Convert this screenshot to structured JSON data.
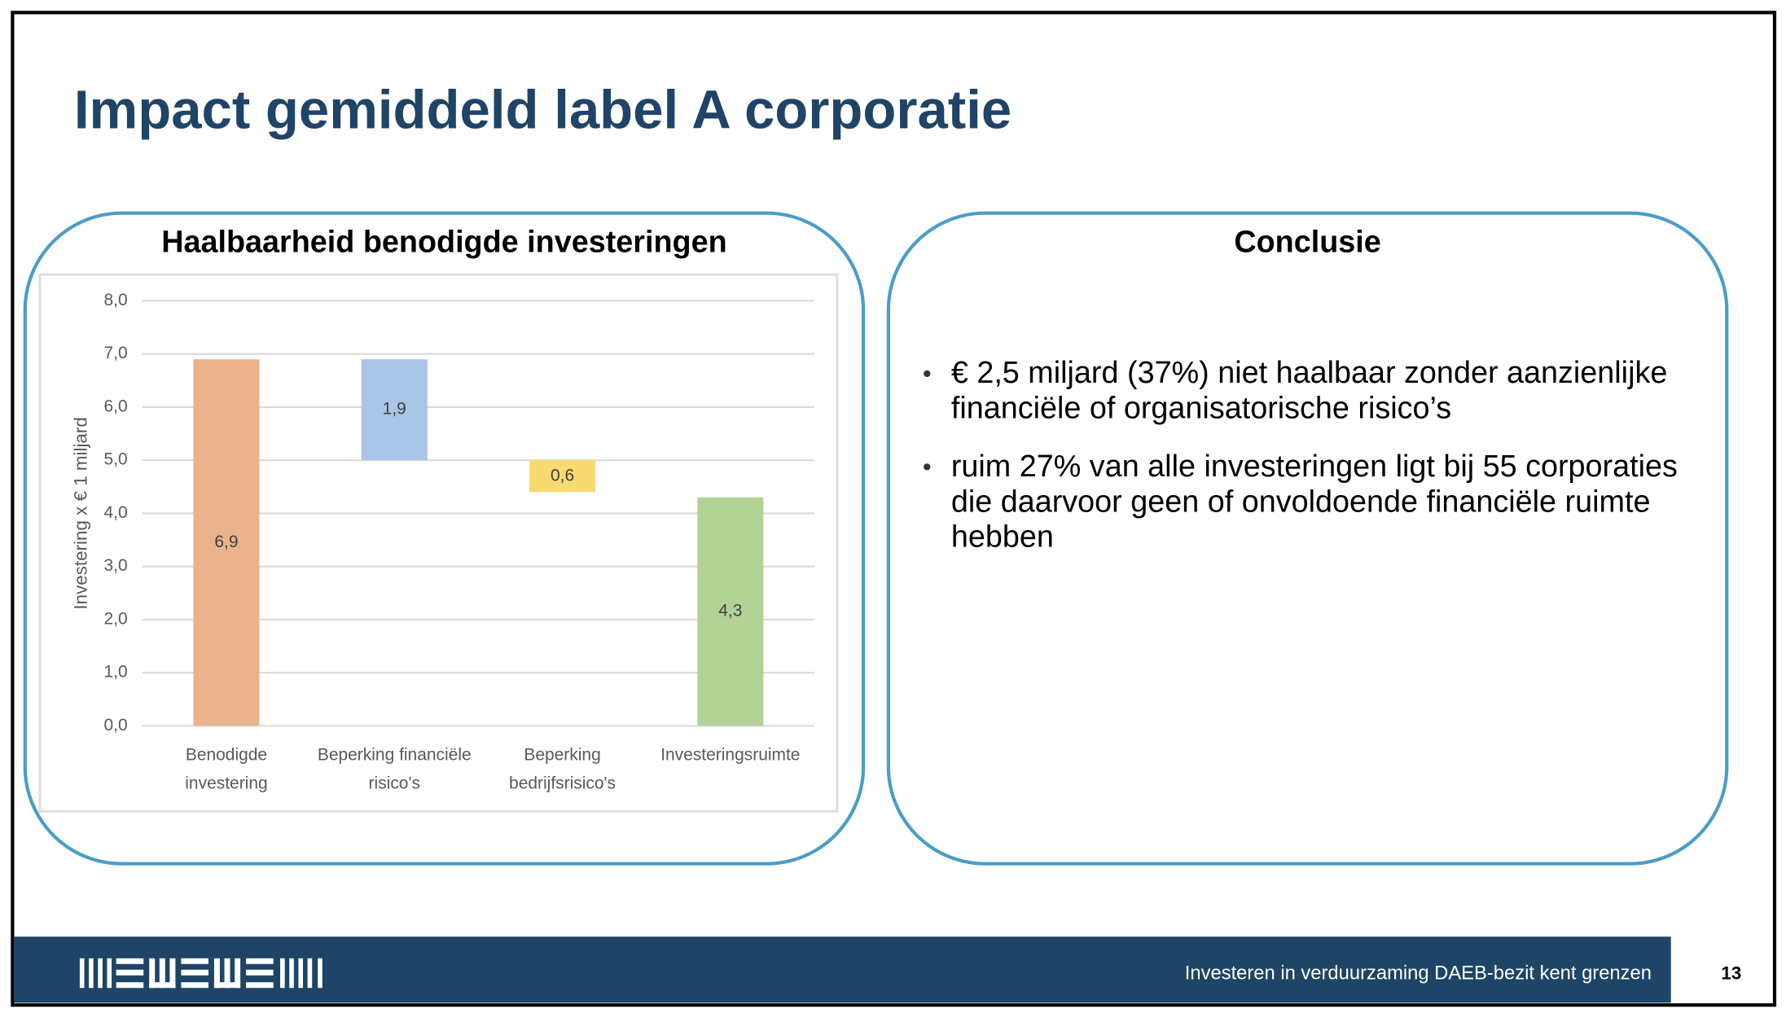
{
  "header": {
    "title": "Impact gemiddeld label A corporatie"
  },
  "left_panel": {
    "title": "Haalbaarheid benodigde investeringen"
  },
  "chart_data": {
    "type": "waterfall",
    "categories": [
      [
        "Benodigde",
        "investering"
      ],
      [
        "Beperking financiële",
        "risico's"
      ],
      [
        "Beperking",
        "bedrijfsrisico's"
      ],
      [
        "Investeringsruimte"
      ]
    ],
    "measure": [
      "absolute",
      "relative",
      "relative",
      "total"
    ],
    "values": [
      6.9,
      1.9,
      0.6,
      4.3
    ],
    "value_labels": [
      "6,9",
      "1,9",
      "0,6",
      "4,3"
    ],
    "colors": [
      "#ebb38c",
      "#a9c6e8",
      "#f7da70",
      "#b3d296"
    ],
    "ylabel": "Investering x € 1 miljard",
    "ylim": [
      0,
      8
    ],
    "yticks": [
      {
        "value": 0,
        "label": "0,0"
      },
      {
        "value": 1,
        "label": "1,0"
      },
      {
        "value": 2,
        "label": "2,0"
      },
      {
        "value": 3,
        "label": "3,0"
      },
      {
        "value": 4,
        "label": "4,0"
      },
      {
        "value": 5,
        "label": "5,0"
      },
      {
        "value": 6,
        "label": "6,0"
      },
      {
        "value": 7,
        "label": "7,0"
      },
      {
        "value": 8,
        "label": "8,0"
      }
    ],
    "grid": true
  },
  "right_panel": {
    "title": "Conclusie",
    "bullets": [
      "€ 2,5 miljard (37%) niet haalbaar zonder aanzienlijke financiële of organisatorische risico’s",
      "ruim 27% van alle investeringen ligt bij 55 corporaties die daarvoor geen of onvoldoende financiële ruimte hebben"
    ]
  },
  "footer": {
    "text": "Investeren in verduurzaming DAEB-bezit kent grenzen",
    "page": "13"
  }
}
